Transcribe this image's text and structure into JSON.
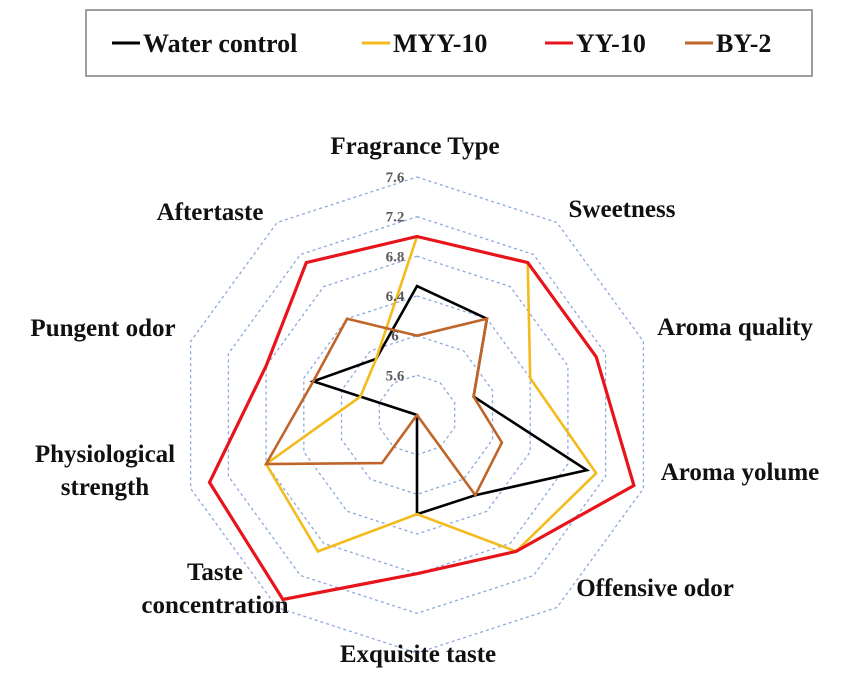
{
  "chart_data": {
    "type": "radar",
    "title": "",
    "axes": [
      [
        "Fragrance Type"
      ],
      [
        "Sweetness"
      ],
      [
        "Aroma quality"
      ],
      [
        "Aroma yolume"
      ],
      [
        "Offensive odor"
      ],
      [
        "Exquisite taste"
      ],
      [
        "Taste",
        "concentration"
      ],
      [
        "Physiological",
        "strength"
      ],
      [
        "Pungent odor"
      ],
      [
        "Aftertaste"
      ]
    ],
    "rlim": [
      5.2,
      7.6
    ],
    "ticks": [
      5.6,
      6,
      6.4,
      6.8,
      7.2,
      7.6
    ],
    "tick_labels": [
      "5.6",
      "6",
      "6.4",
      "6.8",
      "7.2",
      "7.6"
    ],
    "grid": true,
    "legend_position": "top",
    "series": [
      {
        "name": "Water control",
        "color": "#000000",
        "values": [
          6.5,
          6.4,
          5.8,
          7.0,
          6.2,
          6.2,
          5.2,
          5.2,
          6.3,
          5.9
        ]
      },
      {
        "name": "MYY-10",
        "color": "#f3bb1c",
        "values": [
          7.0,
          7.1,
          6.4,
          7.1,
          6.9,
          6.2,
          6.9,
          6.8,
          5.8,
          5.9
        ]
      },
      {
        "name": "YY-10",
        "color": "#e8141b",
        "values": [
          7.0,
          7.1,
          7.1,
          7.5,
          6.9,
          6.8,
          7.5,
          7.4,
          6.8,
          7.1
        ]
      },
      {
        "name": "BY-2",
        "color": "#c0652a",
        "values": [
          6.0,
          6.4,
          5.8,
          6.1,
          6.2,
          5.2,
          5.8,
          6.8,
          6.3,
          6.4
        ]
      }
    ]
  }
}
